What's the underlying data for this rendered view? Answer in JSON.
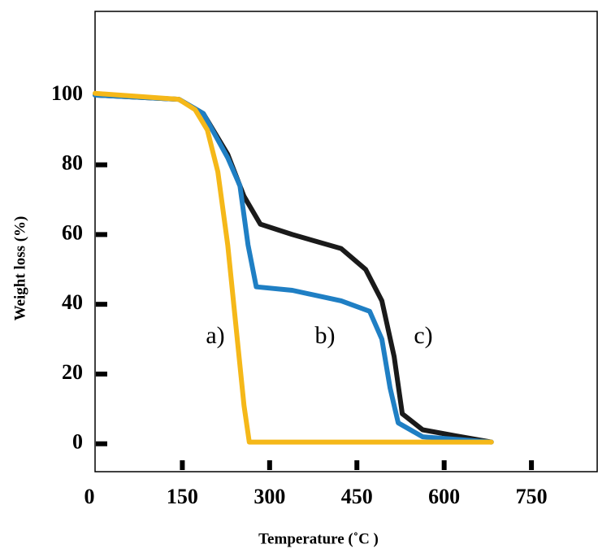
{
  "chart_data": {
    "type": "line",
    "x_label": "Temperature (˚C )",
    "y_label": "Weight loss (%)",
    "xlim": [
      0,
      863
    ],
    "ylim": [
      -8,
      124
    ],
    "xticks": [
      0,
      150,
      300,
      450,
      600,
      750
    ],
    "yticks": [
      0,
      20,
      40,
      60,
      80,
      100
    ],
    "annotations": [
      "a)",
      "b)",
      "c)"
    ],
    "series": [
      {
        "color": "#1a1a1a",
        "x": [
          0,
          144,
          186,
          228,
          256,
          284,
          339,
          423,
          465,
          493,
          514,
          528,
          563,
          619,
          681
        ],
        "values": [
          100,
          98.8,
          94.7,
          83,
          71,
          63,
          60,
          56,
          50,
          41,
          25,
          8.6,
          4,
          2.3,
          0.5
        ]
      },
      {
        "color": "#1f7fc4",
        "x": [
          0,
          144,
          186,
          228,
          249,
          263,
          277,
          339,
          423,
          472,
          493,
          507,
          521,
          563,
          681
        ],
        "values": [
          100,
          98.8,
          94.7,
          82,
          74,
          57,
          45,
          44,
          41,
          38,
          30,
          16,
          6,
          2,
          0.5
        ]
      },
      {
        "color": "#f5b819",
        "x": [
          0,
          144,
          172,
          193,
          211,
          228,
          242,
          256,
          265,
          681
        ],
        "values": [
          100.5,
          98.8,
          95.8,
          90,
          78,
          57,
          34,
          11,
          0.5,
          0.5
        ]
      }
    ]
  }
}
